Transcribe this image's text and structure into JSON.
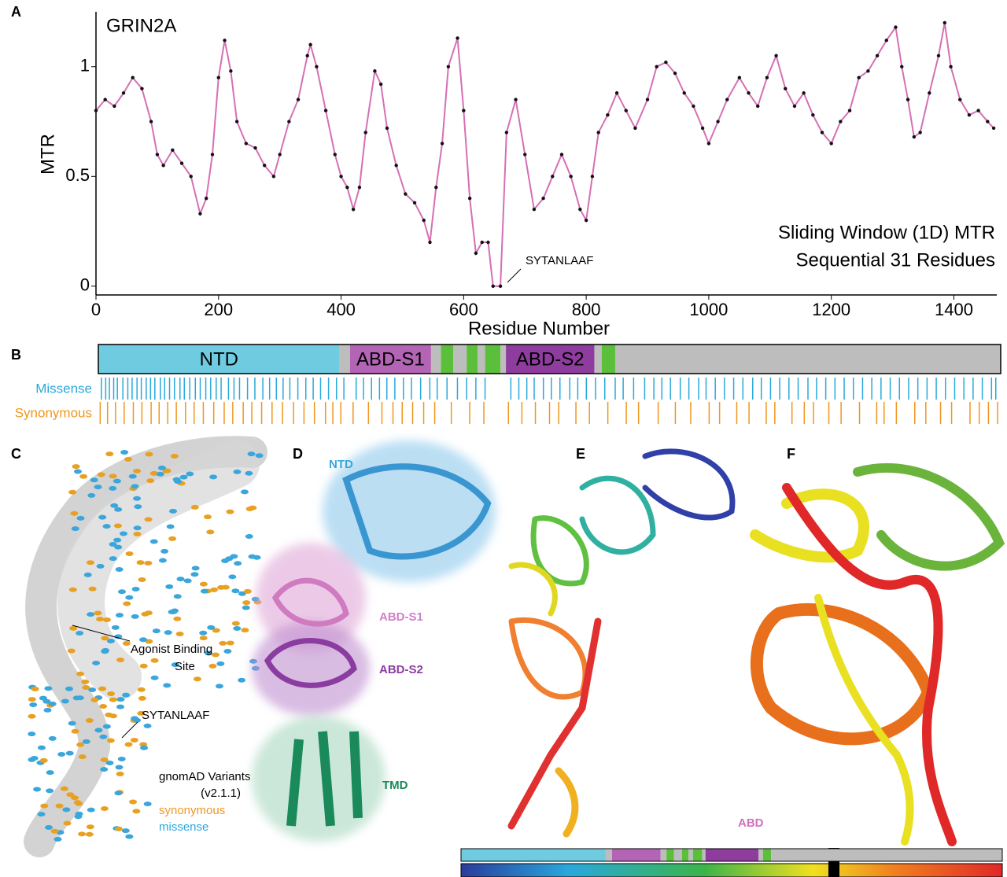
{
  "panel_labels": [
    "A",
    "B",
    "C",
    "D",
    "E",
    "F"
  ],
  "chart_data": {
    "type": "line",
    "title": "GRIN2A",
    "ylabel": "MTR",
    "xlabel": "Residue Number",
    "annotations": [
      "Sliding Window (1D) MTR",
      "Sequential 31 Residues",
      "SYTANLAAF"
    ],
    "x": [
      0,
      15,
      30,
      45,
      60,
      75,
      90,
      100,
      110,
      125,
      140,
      155,
      170,
      180,
      190,
      200,
      210,
      220,
      230,
      245,
      260,
      275,
      290,
      300,
      315,
      330,
      345,
      350,
      360,
      375,
      390,
      400,
      410,
      420,
      430,
      440,
      455,
      465,
      475,
      490,
      505,
      520,
      535,
      545,
      555,
      565,
      575,
      590,
      600,
      610,
      620,
      630,
      640,
      648,
      660,
      670,
      685,
      700,
      715,
      730,
      745,
      760,
      775,
      790,
      800,
      810,
      820,
      835,
      850,
      865,
      880,
      900,
      915,
      930,
      945,
      960,
      975,
      990,
      1000,
      1015,
      1030,
      1050,
      1065,
      1080,
      1095,
      1110,
      1125,
      1140,
      1155,
      1170,
      1185,
      1200,
      1215,
      1230,
      1245,
      1260,
      1275,
      1290,
      1305,
      1315,
      1325,
      1335,
      1345,
      1360,
      1375,
      1385,
      1395,
      1410,
      1425,
      1440,
      1455,
      1465
    ],
    "series": [
      {
        "name": "MTR",
        "color": "#d66fb5",
        "marker_color": "#111111",
        "values": [
          0.8,
          0.85,
          0.82,
          0.88,
          0.95,
          0.9,
          0.75,
          0.6,
          0.55,
          0.62,
          0.56,
          0.5,
          0.33,
          0.4,
          0.6,
          0.95,
          1.12,
          0.98,
          0.75,
          0.65,
          0.63,
          0.55,
          0.5,
          0.6,
          0.75,
          0.85,
          1.05,
          1.1,
          1.0,
          0.8,
          0.6,
          0.5,
          0.45,
          0.35,
          0.45,
          0.7,
          0.98,
          0.92,
          0.72,
          0.55,
          0.42,
          0.38,
          0.3,
          0.2,
          0.45,
          0.65,
          1.0,
          1.13,
          0.8,
          0.4,
          0.15,
          0.2,
          0.2,
          0,
          0,
          0.7,
          0.85,
          0.6,
          0.35,
          0.4,
          0.5,
          0.6,
          0.5,
          0.35,
          0.3,
          0.5,
          0.7,
          0.78,
          0.88,
          0.8,
          0.72,
          0.85,
          1.0,
          1.02,
          0.97,
          0.88,
          0.82,
          0.72,
          0.65,
          0.75,
          0.85,
          0.95,
          0.88,
          0.82,
          0.95,
          1.05,
          0.9,
          0.82,
          0.88,
          0.78,
          0.7,
          0.65,
          0.75,
          0.8,
          0.95,
          0.98,
          1.05,
          1.12,
          1.18,
          1.0,
          0.85,
          0.68,
          0.7,
          0.88,
          1.05,
          1.2,
          1.0,
          0.85,
          0.78,
          0.8,
          0.75,
          0.72
        ]
      }
    ],
    "xlim": [
      0,
      1470
    ],
    "ylim": [
      -0.04,
      1.25
    ],
    "xticks": [
      0,
      200,
      400,
      600,
      800,
      1000,
      1200,
      1400
    ],
    "yticks": [
      0,
      0.5,
      1
    ]
  },
  "domain_map": {
    "domains": [
      {
        "name": "NTD",
        "start": 0,
        "end": 393,
        "color": "#6ecbe0"
      },
      {
        "start": 393,
        "end": 410,
        "color": "#bdbdbd"
      },
      {
        "name": "ABD-S1",
        "start": 410,
        "end": 542,
        "color": "#b464b4"
      },
      {
        "start": 542,
        "end": 558,
        "color": "#bdbdbd"
      },
      {
        "start": 558,
        "end": 578,
        "color": "#5cbf3c"
      },
      {
        "start": 578,
        "end": 600,
        "color": "#bdbdbd"
      },
      {
        "start": 600,
        "end": 618,
        "color": "#5cbf3c"
      },
      {
        "start": 618,
        "end": 630,
        "color": "#bdbdbd"
      },
      {
        "start": 630,
        "end": 655,
        "color": "#5cbf3c"
      },
      {
        "start": 655,
        "end": 664,
        "color": "#bdbdbd"
      },
      {
        "name": "ABD-S2",
        "start": 664,
        "end": 808,
        "color": "#8e3c9e"
      },
      {
        "start": 808,
        "end": 820,
        "color": "#bdbdbd"
      },
      {
        "start": 820,
        "end": 842,
        "color": "#5cbf3c"
      },
      {
        "start": 842,
        "end": 1470,
        "color": "#bdbdbd"
      }
    ],
    "tracks": [
      {
        "name": "Missense",
        "color": "#2aa8dc",
        "positions": [
          5,
          12,
          18,
          25,
          31,
          40,
          48,
          55,
          63,
          70,
          78,
          85,
          92,
          101,
          108,
          116,
          124,
          133,
          140,
          149,
          158,
          166,
          175,
          183,
          192,
          200,
          212,
          221,
          230,
          243,
          255,
          268,
          279,
          290,
          301,
          312,
          325,
          338,
          350,
          362,
          375,
          388,
          400,
          420,
          432,
          445,
          458,
          470,
          483,
          497,
          510,
          525,
          540,
          552,
          568,
          585,
          600,
          615,
          630,
          672,
          685,
          698,
          710,
          725,
          738,
          752,
          768,
          781,
          795,
          810,
          825,
          842,
          855,
          872,
          890,
          905,
          918,
          932,
          948,
          962,
          978,
          990,
          1005,
          1020,
          1035,
          1050,
          1066,
          1080,
          1095,
          1110,
          1125,
          1140,
          1156,
          1170,
          1185,
          1200,
          1215,
          1230,
          1245,
          1260,
          1275,
          1290,
          1305,
          1320,
          1335,
          1350,
          1365,
          1380,
          1395,
          1410,
          1425,
          1440,
          1455,
          1462
        ]
      },
      {
        "name": "Synonymous",
        "color": "#f0961e",
        "positions": [
          3,
          15,
          28,
          42,
          57,
          71,
          86,
          99,
          113,
          127,
          142,
          156,
          171,
          188,
          205,
          219,
          236,
          250,
          266,
          283,
          300,
          318,
          335,
          352,
          370,
          382,
          395,
          415,
          440,
          462,
          480,
          495,
          512,
          530,
          548,
          575,
          605,
          628,
          668,
          690,
          712,
          735,
          750,
          778,
          800,
          830,
          860,
          880,
          912,
          940,
          965,
          995,
          1012,
          1040,
          1060,
          1088,
          1102,
          1130,
          1150,
          1165,
          1190,
          1210,
          1240,
          1268,
          1280,
          1300,
          1330,
          1348,
          1372,
          1390,
          1420,
          1435,
          1450,
          1465
        ]
      }
    ]
  },
  "structures": {
    "c": {
      "agonist": [
        "Agonist Binding",
        "Site"
      ],
      "motif": "SYTANLAAF",
      "legend_title": [
        "gnomAD Variants",
        "(v2.1.1)"
      ],
      "synonymous": "synonymous",
      "missense": "missense"
    },
    "d": {
      "ntd": "NTD",
      "abd_s1": "ABD-S1",
      "abd_s2": "ABD-S2",
      "tmd": "TMD"
    },
    "f": {
      "abd": "ABD"
    }
  }
}
